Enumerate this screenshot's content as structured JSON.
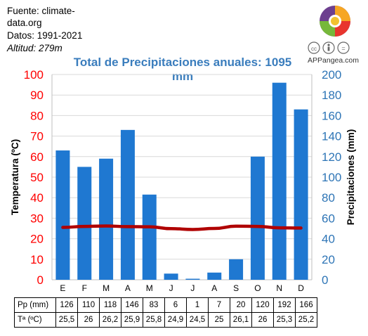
{
  "source": {
    "line1": "Fuente: climate-",
    "line2": "data.org",
    "line3": "Datos: 1991-2021",
    "line4": "Altitud: 279m"
  },
  "brand": "APPangea.com",
  "chart_data": {
    "type": "bar",
    "title": "Total de Precipitaciones anuales: 1095 mm",
    "categories": [
      "E",
      "F",
      "M",
      "A",
      "M",
      "J",
      "J",
      "A",
      "S",
      "O",
      "N",
      "D"
    ],
    "series": [
      {
        "name": "Pp (mm)",
        "type": "bar",
        "axis": "right",
        "values": [
          126,
          110,
          118,
          146,
          83,
          6,
          1,
          7,
          20,
          120,
          192,
          166
        ],
        "color": "#1f78d1"
      },
      {
        "name": "Tª (ºC)",
        "type": "line",
        "axis": "left",
        "values": [
          25.5,
          26,
          26.2,
          25.9,
          25.8,
          24.9,
          24.5,
          25,
          26.1,
          26,
          25.3,
          25.2
        ],
        "color": "#b00000"
      }
    ],
    "y_left": {
      "label": "Temperatura (ºC)",
      "range": [
        0,
        100
      ],
      "ticks": [
        0,
        10,
        20,
        30,
        40,
        50,
        60,
        70,
        80,
        90,
        100
      ],
      "color": "#ff0000"
    },
    "y_right": {
      "label": "Precipitaciones (mm)",
      "range": [
        0,
        200
      ],
      "ticks": [
        0,
        20,
        40,
        60,
        80,
        100,
        120,
        140,
        160,
        180,
        200
      ],
      "color": "#2e75b6"
    },
    "table": {
      "headers": [
        "Pp (mm)",
        "Tª (ºC)"
      ],
      "pp": [
        "126",
        "110",
        "118",
        "146",
        "83",
        "6",
        "1",
        "7",
        "20",
        "120",
        "192",
        "166"
      ],
      "temp": [
        "25,5",
        "26",
        "26,2",
        "25,9",
        "25,8",
        "24,9",
        "24,5",
        "25",
        "26,1",
        "26",
        "25,3",
        "25,2"
      ]
    }
  }
}
